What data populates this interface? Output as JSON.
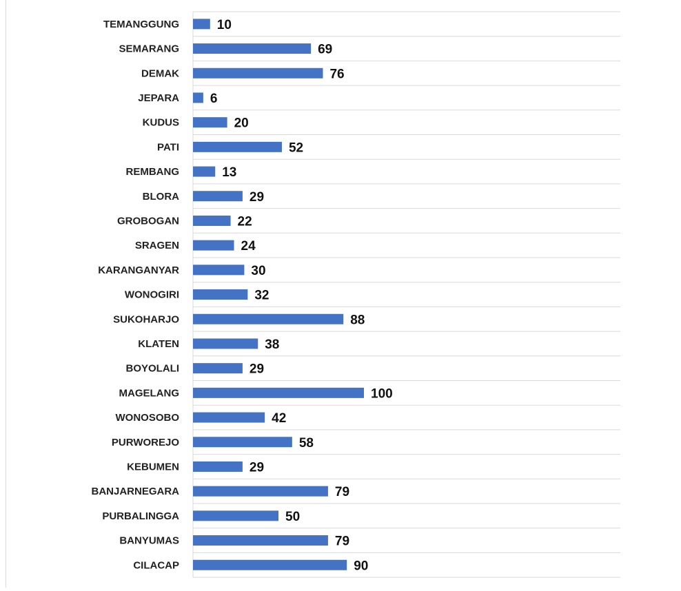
{
  "chart_data": {
    "type": "bar",
    "orientation": "horizontal",
    "title": "",
    "xlabel": "",
    "ylabel": "",
    "categories": [
      "TEMANGGUNG",
      "SEMARANG",
      "DEMAK",
      "JEPARA",
      "KUDUS",
      "PATI",
      "REMBANG",
      "BLORA",
      "GROBOGAN",
      "SRAGEN",
      "KARANGANYAR",
      "WONOGIRI",
      "SUKOHARJO",
      "KLATEN",
      "BOYOLALI",
      "MAGELANG",
      "WONOSOBO",
      "PURWOREJO",
      "KEBUMEN",
      "BANJARNEGARA",
      "PURBALINGGA",
      "BANYUMAS",
      "CILACAP"
    ],
    "values": [
      10,
      69,
      76,
      6,
      20,
      52,
      13,
      29,
      22,
      24,
      30,
      32,
      88,
      38,
      29,
      100,
      42,
      58,
      29,
      79,
      50,
      79,
      90
    ],
    "xlim": [
      0,
      250
    ],
    "grid": "horizontal",
    "legend": "none",
    "data_labels": true,
    "colors": {
      "bar": "#4472c4",
      "grid": "#d9d9d9",
      "text": "#222222"
    }
  }
}
